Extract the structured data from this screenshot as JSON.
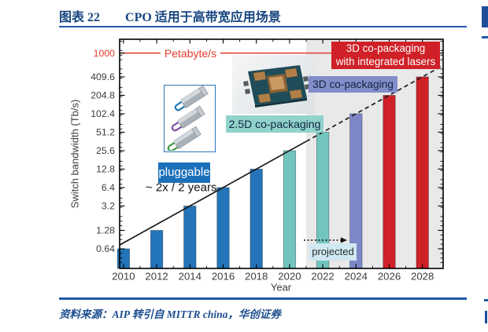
{
  "header": {
    "figure_label": "图表 22",
    "title": "CPO 适用于高带宽应用场景"
  },
  "source": {
    "text": "资料来源：AIP  转引自 MITTR china，华创证券"
  },
  "colors": {
    "title_navy": "#17457f",
    "rule_blue": "#1f5aa8",
    "highlight_red": "#e4392c",
    "tick_text": "#3d3d3d",
    "frame_black": "#000000",
    "projected_region_bg": "#e9e9e9",
    "trend_line_black": "#1a1a1a"
  },
  "chart_data": {
    "type": "bar",
    "title": "CPO 适用于高带宽应用场景",
    "xlabel": "Year",
    "ylabel": "Switch bandwidth (Tb/s)",
    "y_scale": "log2",
    "ylim": [
      0.45,
      1600
    ],
    "grid": "off",
    "categories": [
      "2010",
      "2012",
      "2014",
      "2016",
      "2018",
      "2020",
      "2022",
      "2024",
      "2026",
      "2028"
    ],
    "values": [
      0.64,
      1.28,
      3.2,
      6.4,
      12.8,
      25.6,
      51.2,
      102.4,
      204.8,
      409.6
    ],
    "bar_technologies": [
      "pluggable",
      "pluggable",
      "pluggable",
      "pluggable",
      "pluggable",
      "2.5D co-packaging",
      "2.5D co-packaging",
      "3D co-packaging",
      "3D co-packaging with integrated lasers",
      "3D co-packaging with integrated lasers"
    ],
    "technology_colors": {
      "pluggable": "#2374b8",
      "2.5D co-packaging": "#72c5be",
      "3D co-packaging": "#7d87c7",
      "3D co-packaging with integrated lasers": "#cf2127"
    },
    "y_tick_labels": [
      "0.64",
      "1.28",
      "3.2",
      "6.4",
      "12.8",
      "25.6",
      "51.2",
      "102.4",
      "204.8",
      "409.6",
      "1000"
    ],
    "y_tick_values": [
      0.64,
      1.28,
      3.2,
      6.4,
      12.8,
      25.6,
      51.2,
      102.4,
      204.8,
      409.6,
      1000
    ],
    "reference_line": {
      "label": "Petabyte/s",
      "value": 1000,
      "color": "#e4392c"
    },
    "trend_line": {
      "label": "~ 2x / 2 years",
      "through": [
        [
          2014,
          3.2
        ],
        [
          2028,
          409.6
        ]
      ],
      "solid_until_year": 2021,
      "dashed_after": true
    },
    "projected": {
      "label": "projected",
      "from_year": 2021,
      "bg": "#cfe8f2",
      "fg": "#2b2b2b"
    },
    "annotations": {
      "pluggable": {
        "label": "pluggable",
        "bg": "#1c70ba",
        "fg": "#ffffff"
      },
      "cpo_25d": {
        "label": "2.5D co-packaging",
        "bg": "#8fd3cb",
        "fg": "#13233f"
      },
      "cpo_3d": {
        "label": "3D co-packaging",
        "bg": "#828dca",
        "fg": "#13233f"
      },
      "cpo_3d_laser": {
        "line1": "3D co-packaging",
        "line2": "with integrated lasers",
        "bg": "#cf2127",
        "fg": "#ffffff"
      }
    },
    "images": {
      "transceiver_loop_colors": [
        "#1f77b4",
        "#7a4fa0",
        "#3a9a46"
      ]
    }
  }
}
